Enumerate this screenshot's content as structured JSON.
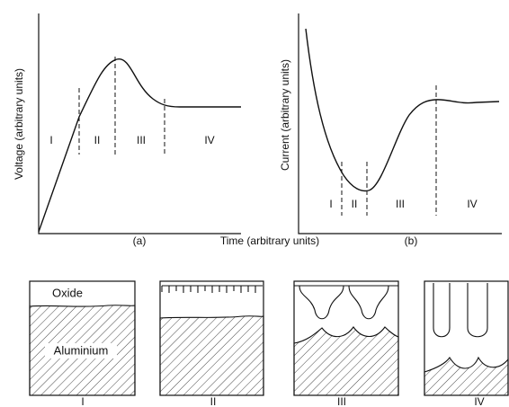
{
  "panel_a": {
    "y_label": "Voltage (arbitrary units)",
    "caption": "(a)",
    "regions": [
      "I",
      "II",
      "III",
      "IV"
    ]
  },
  "panel_b": {
    "y_label": "Current (arbitrary units)",
    "caption": "(b)",
    "regions": [
      "I",
      "II",
      "III",
      "IV"
    ]
  },
  "x_label": "Time (arbitrary units)",
  "layers": {
    "oxide": "Oxide",
    "metal": "Aluminium"
  },
  "stages": [
    "I",
    "II",
    "III",
    "IV"
  ]
}
